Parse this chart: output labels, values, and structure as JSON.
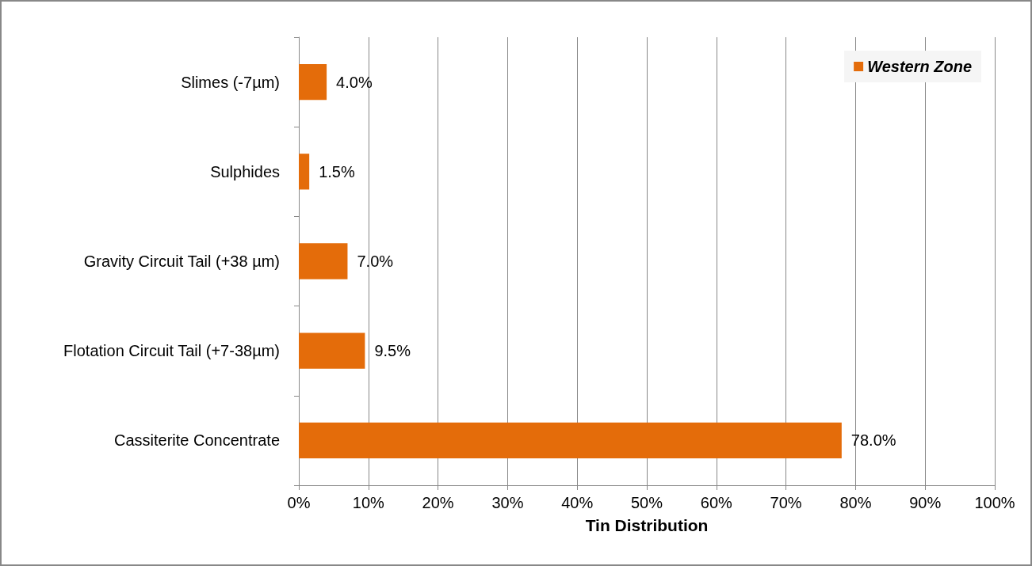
{
  "chart_data": {
    "type": "bar",
    "orientation": "horizontal",
    "xlabel": "Tin Distribution",
    "categories": [
      "Slimes (-7µm)",
      "Sulphides",
      "Gravity Circuit Tail (+38 µm)",
      "Flotation Circuit Tail (+7-38µm)",
      "Cassiterite Concentrate"
    ],
    "series": [
      {
        "name": "Western Zone",
        "color": "#e46c0a",
        "values": [
          4.0,
          1.5,
          7.0,
          9.5,
          78.0
        ],
        "value_labels": [
          "4.0%",
          "1.5%",
          "7.0%",
          "9.5%",
          "78.0%"
        ]
      }
    ],
    "xlim": [
      0,
      100
    ],
    "xticks": [
      {
        "value": 0,
        "label": "0%"
      },
      {
        "value": 10,
        "label": "10%"
      },
      {
        "value": 20,
        "label": "20%"
      },
      {
        "value": 30,
        "label": "30%"
      },
      {
        "value": 40,
        "label": "40%"
      },
      {
        "value": 50,
        "label": "50%"
      },
      {
        "value": 60,
        "label": "60%"
      },
      {
        "value": 70,
        "label": "70%"
      },
      {
        "value": 80,
        "label": "80%"
      },
      {
        "value": 90,
        "label": "90%"
      },
      {
        "value": 100,
        "label": "100%"
      }
    ],
    "grid": "x",
    "legend": "top right"
  }
}
